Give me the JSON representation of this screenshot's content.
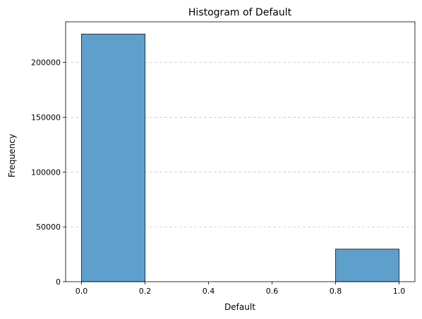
{
  "chart_data": {
    "type": "bar",
    "title": "Histogram of Default",
    "xlabel": "Default",
    "ylabel": "Frequency",
    "bins": [
      {
        "x0": 0.0,
        "x1": 0.2,
        "count": 225800
      },
      {
        "x0": 0.2,
        "x1": 0.4,
        "count": 0
      },
      {
        "x0": 0.4,
        "x1": 0.6,
        "count": 0
      },
      {
        "x0": 0.6,
        "x1": 0.8,
        "count": 0
      },
      {
        "x0": 0.8,
        "x1": 1.0,
        "count": 29700
      }
    ],
    "xlim": [
      -0.05,
      1.05
    ],
    "ylim": [
      0,
      237000
    ],
    "xticks": [
      0.0,
      0.2,
      0.4,
      0.6,
      0.8,
      1.0
    ],
    "xtick_labels": [
      "0.0",
      "0.2",
      "0.4",
      "0.6",
      "0.8",
      "1.0"
    ],
    "yticks": [
      0,
      50000,
      100000,
      150000,
      200000
    ],
    "ytick_labels": [
      "0",
      "50000",
      "100000",
      "150000",
      "200000"
    ],
    "grid": {
      "axis": "y",
      "style": "dashed"
    },
    "colors": {
      "bar_fill": "#5f9fcc",
      "bar_edge": "#2b3440",
      "grid": "#c8c8c8"
    }
  }
}
